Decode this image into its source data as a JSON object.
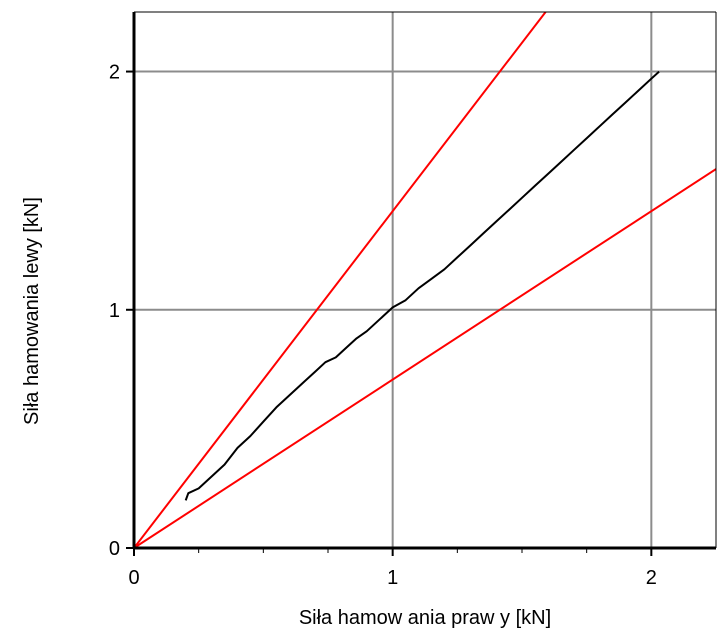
{
  "chart_data": {
    "type": "line",
    "xlabel": "Siła hamow ania praw y [kN]",
    "ylabel": "Siła hamowania lewy  [kN]",
    "xlim": [
      0,
      2.25
    ],
    "ylim": [
      0,
      2.25
    ],
    "x_ticks": [
      {
        "value": 0,
        "label": "0"
      },
      {
        "value": 1,
        "label": "1"
      },
      {
        "value": 2,
        "label": "2"
      }
    ],
    "y_ticks": [
      {
        "value": 0,
        "label": "0"
      },
      {
        "value": 1,
        "label": "1"
      },
      {
        "value": 2,
        "label": "2"
      }
    ],
    "x_minor_ticks": [
      0.25,
      0.5,
      0.75,
      1.25,
      1.5,
      1.75
    ],
    "grid": true,
    "series": [
      {
        "color": "#000000",
        "points": [
          [
            0.2,
            0.2
          ],
          [
            0.21,
            0.23
          ],
          [
            0.25,
            0.25
          ],
          [
            0.3,
            0.3
          ],
          [
            0.35,
            0.35
          ],
          [
            0.4,
            0.42
          ],
          [
            0.45,
            0.47
          ],
          [
            0.5,
            0.53
          ],
          [
            0.55,
            0.59
          ],
          [
            0.6,
            0.64
          ],
          [
            0.65,
            0.69
          ],
          [
            0.7,
            0.74
          ],
          [
            0.74,
            0.78
          ],
          [
            0.78,
            0.8
          ],
          [
            0.82,
            0.84
          ],
          [
            0.86,
            0.88
          ],
          [
            0.9,
            0.91
          ],
          [
            0.95,
            0.96
          ],
          [
            1.0,
            1.01
          ],
          [
            1.05,
            1.04
          ],
          [
            1.1,
            1.09
          ],
          [
            1.15,
            1.13
          ],
          [
            1.2,
            1.17
          ],
          [
            1.25,
            1.22
          ],
          [
            1.3,
            1.27
          ],
          [
            1.35,
            1.32
          ],
          [
            1.4,
            1.37
          ],
          [
            1.45,
            1.42
          ],
          [
            1.5,
            1.47
          ],
          [
            1.55,
            1.52
          ],
          [
            1.6,
            1.57
          ],
          [
            1.65,
            1.62
          ],
          [
            1.7,
            1.67
          ],
          [
            1.75,
            1.72
          ],
          [
            1.8,
            1.77
          ],
          [
            1.85,
            1.82
          ],
          [
            1.9,
            1.87
          ],
          [
            1.95,
            1.92
          ],
          [
            2.0,
            1.97
          ],
          [
            2.03,
            2.0
          ]
        ]
      },
      {
        "color": "#ff0000",
        "slope": 1.414
      },
      {
        "color": "#ff0000",
        "slope": 0.707
      }
    ]
  }
}
